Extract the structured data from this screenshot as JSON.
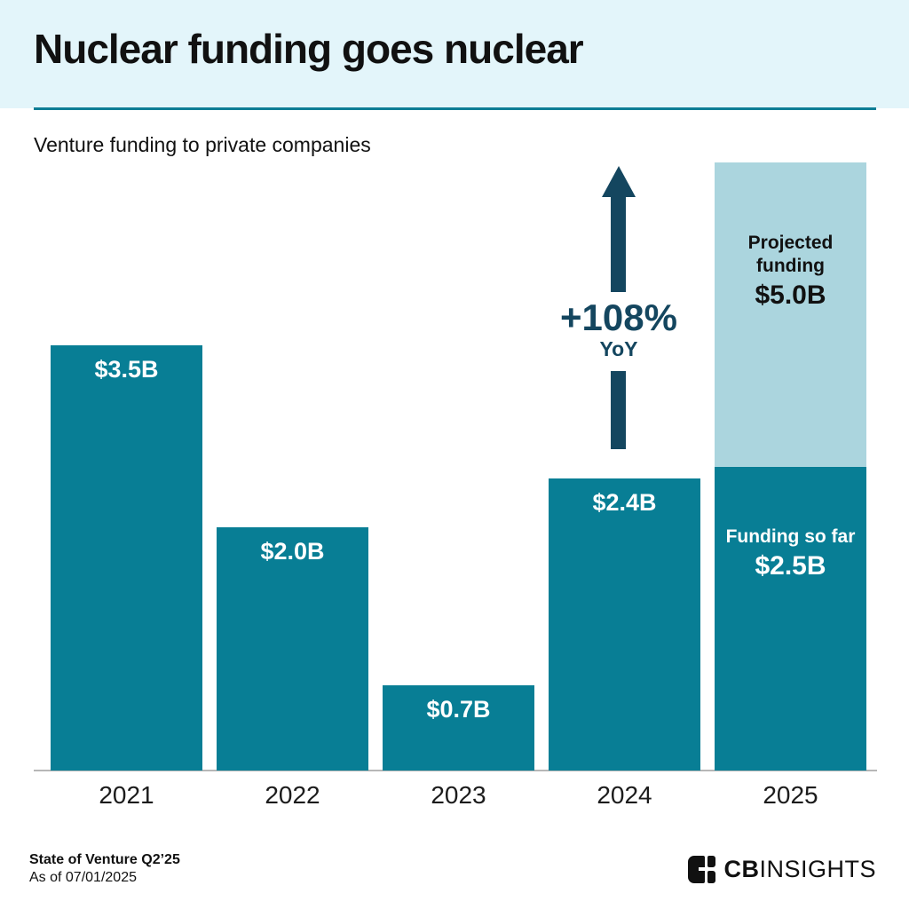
{
  "header": {
    "title": "Nuclear funding goes nuclear",
    "subtitle": "Venture funding to private companies"
  },
  "chart_data": {
    "type": "bar",
    "title": "Nuclear funding goes nuclear",
    "subtitle": "Venture funding to private companies",
    "unit": "USD billions",
    "grid": false,
    "y_axis_visible": false,
    "categories": [
      "2021",
      "2022",
      "2023",
      "2024",
      "2025"
    ],
    "bars": [
      {
        "category": "2021",
        "value": 3.5,
        "label": "$3.5B"
      },
      {
        "category": "2022",
        "value": 2.0,
        "label": "$2.0B"
      },
      {
        "category": "2023",
        "value": 0.7,
        "label": "$0.7B"
      },
      {
        "category": "2024",
        "value": 2.4,
        "label": "$2.4B"
      },
      {
        "category": "2025",
        "segments": [
          {
            "name": "Funding so far",
            "value": 2.5,
            "label_title": "Funding so far",
            "label_value": "$2.5B",
            "style": "solid"
          },
          {
            "name": "Projected funding",
            "value": 2.5,
            "cumulative_total": 5.0,
            "label_title": "Projected funding",
            "label_value": "$5.0B",
            "style": "projected"
          }
        ]
      }
    ],
    "annotation": {
      "text": "+108%",
      "sub": "YoY"
    }
  },
  "footer": {
    "source_line1": "State of Venture Q2’25",
    "source_line2": "As of 07/01/2025",
    "logo_bold": "CB",
    "logo_light": "INSIGHTS"
  },
  "colors": {
    "header_bg": "#E3F5FA",
    "accent_rule": "#0E7D95",
    "bar_teal": "#087E95",
    "bar_light": "#ABD5DE",
    "navy": "#14465F",
    "text_dark": "#111111",
    "axis_line": "#B7B7B7",
    "white": "#FFFFFF",
    "logo_black": "#111111"
  }
}
